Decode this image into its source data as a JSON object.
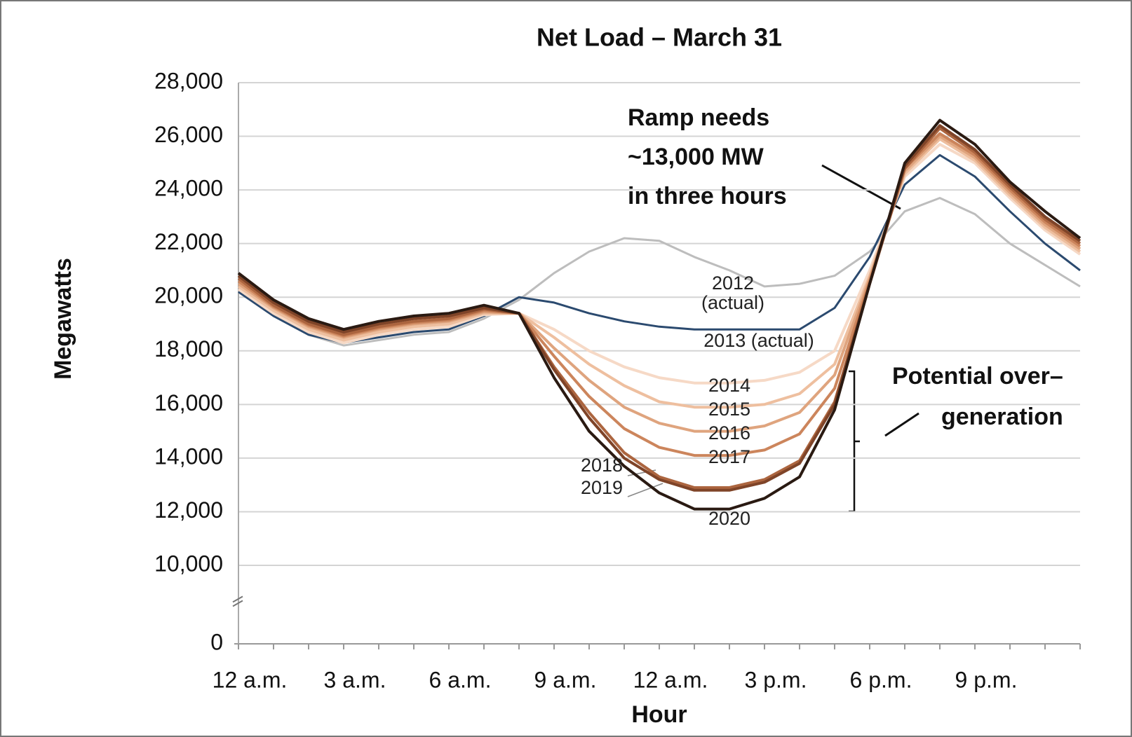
{
  "chart_data": {
    "type": "line",
    "title": "Net Load – March 31",
    "x_label": "Hour",
    "y_label": "Megawatts",
    "categories": [
      "12 a.m.",
      null,
      null,
      "3 a.m.",
      null,
      null,
      "6 a.m.",
      null,
      null,
      "9 a.m.",
      null,
      null,
      "12 a.m.",
      null,
      null,
      "3 p.m.",
      null,
      null,
      "6 p.m.",
      null,
      null,
      "9 p.m.",
      null,
      null,
      null
    ],
    "ylim": [
      0,
      28000
    ],
    "y_axis_break": [
      0,
      10000
    ],
    "yticks": [
      0,
      {
        "value": 10000,
        "label": "10,000"
      },
      {
        "value": 12000,
        "label": "12,000"
      },
      {
        "value": 14000,
        "label": "14,000"
      },
      {
        "value": 16000,
        "label": "16,000"
      },
      {
        "value": 18000,
        "label": "18,000"
      },
      {
        "value": 20000,
        "label": "20,000"
      },
      {
        "value": 22000,
        "label": "22,000"
      },
      {
        "value": 24000,
        "label": "24,000"
      },
      {
        "value": 26000,
        "label": "26,000"
      },
      {
        "value": 28000,
        "label": "28,000"
      }
    ],
    "grid": true,
    "series": [
      {
        "name": "2012 (actual)",
        "color": "#bdbdbd",
        "values": [
          20200,
          19300,
          18600,
          18200,
          18400,
          18600,
          18700,
          19200,
          19900,
          20900,
          21700,
          22200,
          22100,
          21500,
          21000,
          20400,
          20500,
          20800,
          21700,
          23200,
          23700,
          23100,
          22000,
          21200,
          20400
        ]
      },
      {
        "name": "2013 (actual)",
        "color": "#2b4a6f",
        "values": [
          20200,
          19300,
          18600,
          18300,
          18500,
          18700,
          18800,
          19300,
          20000,
          19800,
          19400,
          19100,
          18900,
          18800,
          18800,
          18800,
          18800,
          19600,
          21500,
          24200,
          25300,
          24500,
          23200,
          22000,
          21000
        ]
      },
      {
        "name": "2014",
        "color": "#f6d9c6",
        "values": [
          20300,
          19400,
          18700,
          18300,
          18600,
          18800,
          18900,
          19350,
          19400,
          18800,
          18000,
          17400,
          17000,
          16800,
          16800,
          16900,
          17200,
          18000,
          21000,
          24500,
          25700,
          25000,
          23700,
          22500,
          21600
        ]
      },
      {
        "name": "2015",
        "color": "#eebf9f",
        "values": [
          20400,
          19500,
          18800,
          18400,
          18700,
          18900,
          19000,
          19400,
          19400,
          18500,
          17500,
          16700,
          16100,
          15900,
          15900,
          16000,
          16400,
          17500,
          20800,
          24600,
          25900,
          25100,
          23800,
          22600,
          21700
        ]
      },
      {
        "name": "2016",
        "color": "#dfa47e",
        "values": [
          20500,
          19600,
          18900,
          18500,
          18800,
          19000,
          19100,
          19450,
          19400,
          18100,
          16900,
          15900,
          15300,
          15000,
          15000,
          15200,
          15700,
          17100,
          20700,
          24700,
          26000,
          25200,
          23900,
          22700,
          21800
        ]
      },
      {
        "name": "2017",
        "color": "#cc855c",
        "values": [
          20600,
          19650,
          18950,
          18550,
          18850,
          19050,
          19150,
          19500,
          19400,
          17800,
          16300,
          15100,
          14400,
          14100,
          14100,
          14300,
          14900,
          16600,
          20600,
          24800,
          26100,
          25300,
          24000,
          22800,
          21900
        ]
      },
      {
        "name": "2018",
        "color": "#ac653f",
        "values": [
          20700,
          19700,
          19000,
          18600,
          18900,
          19100,
          19200,
          19550,
          19400,
          17400,
          15700,
          14200,
          13300,
          12900,
          12900,
          13200,
          13900,
          16100,
          20500,
          24800,
          26300,
          25400,
          24100,
          22900,
          22000
        ]
      },
      {
        "name": "2019",
        "color": "#7f4428",
        "values": [
          20800,
          19800,
          19100,
          18700,
          19000,
          19200,
          19300,
          19600,
          19400,
          17300,
          15500,
          14000,
          13200,
          12800,
          12800,
          13100,
          13800,
          16000,
          20500,
          24900,
          26400,
          25500,
          24200,
          23000,
          22100
        ]
      },
      {
        "name": "2020",
        "color": "#2a1a12",
        "values": [
          20900,
          19900,
          19200,
          18800,
          19100,
          19300,
          19400,
          19700,
          19400,
          17000,
          15000,
          13700,
          12700,
          12100,
          12100,
          12500,
          13300,
          15800,
          20500,
          25000,
          26600,
          25700,
          24300,
          23200,
          22200
        ]
      }
    ],
    "annotations": [
      {
        "lines": [
          "Ramp needs",
          "~13,000 MW",
          "in three hours"
        ]
      },
      {
        "lines": [
          "Potential over–",
          "generation"
        ]
      }
    ]
  }
}
